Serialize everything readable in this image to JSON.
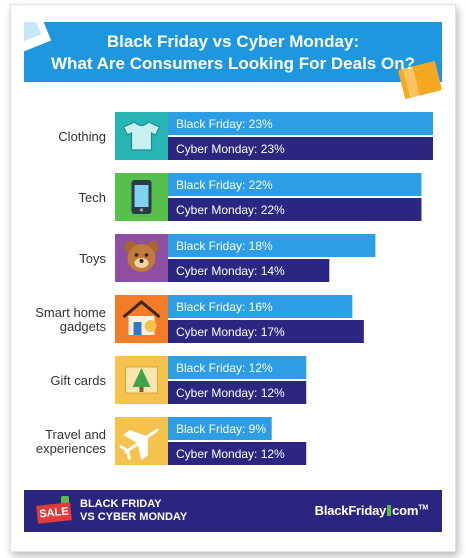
{
  "header": {
    "line1": "Black Friday vs Cyber Monday:",
    "line2": "What Are Consumers Looking For Deals On?"
  },
  "footer": {
    "badge": "SALE",
    "line1": "BLACK FRIDAY",
    "line2": "VS CYBER MONDAY",
    "brand_left": "BlackFriday",
    "brand_right": "com",
    "brand_tm": "TM"
  },
  "colors": {
    "black_friday": "#2d9de4",
    "cyber_monday": "#2b2781",
    "header": "#1e97df",
    "footer": "#2a267f"
  },
  "chart_data": {
    "type": "bar",
    "orientation": "horizontal",
    "categories": [
      "Clothing",
      "Tech",
      "Toys",
      "Smart home gadgets",
      "Gift cards",
      "Travel and experiences"
    ],
    "category_lines": [
      [
        "Clothing"
      ],
      [
        "Tech"
      ],
      [
        "Toys"
      ],
      [
        "Smart home",
        "gadgets"
      ],
      [
        "Gift cards"
      ],
      [
        "Travel and",
        "experiences"
      ]
    ],
    "icons": [
      "tshirt-icon",
      "phone-icon",
      "teddy-bear-icon",
      "smart-home-icon",
      "gift-card-icon",
      "airplane-icon"
    ],
    "icon_colors": [
      "#28b5b5",
      "#57c04a",
      "#8e4fa3",
      "#f57c26",
      "#f4c24d",
      "#f4c24d"
    ],
    "series": [
      {
        "name": "Black Friday",
        "values": [
          23,
          22,
          18,
          16,
          12,
          9
        ]
      },
      {
        "name": "Cyber Monday",
        "values": [
          23,
          22,
          14,
          17,
          12,
          12
        ]
      }
    ],
    "unit": "%",
    "xlim": [
      0,
      23
    ]
  }
}
